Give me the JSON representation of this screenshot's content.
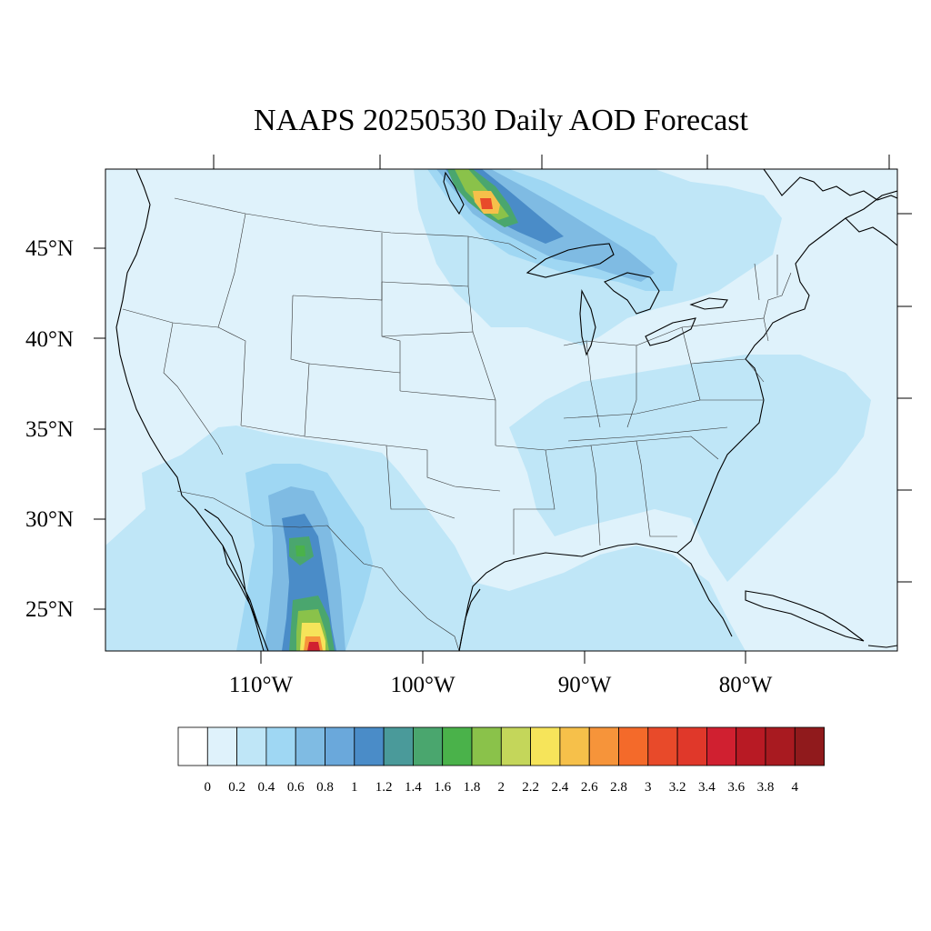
{
  "map": {
    "title": "NAAPS 20250530 Daily AOD Forecast",
    "lon_labels": [
      "110°W",
      "100°W",
      "90°W",
      "80°W"
    ],
    "lat_labels": [
      "45°N",
      "40°N",
      "35°N",
      "30°N",
      "25°N"
    ]
  },
  "legend": {
    "colors": [
      "#ffffff",
      "#dff2fb",
      "#bfe6f7",
      "#9fd7f3",
      "#7fbbe3",
      "#6aa8db",
      "#4a8cc8",
      "#4a9a9a",
      "#4aa66e",
      "#4ab24a",
      "#8ac24a",
      "#c4d65a",
      "#f6e45a",
      "#f6c04a",
      "#f6943a",
      "#f46a2a",
      "#e84a2a",
      "#e0382a",
      "#d02030",
      "#b81a24",
      "#a81a20",
      "#901a1c"
    ],
    "labels": [
      "0",
      "0.2",
      "0.4",
      "0.6",
      "0.8",
      "1",
      "1.2",
      "1.4",
      "1.6",
      "1.8",
      "2",
      "2.2",
      "2.4",
      "2.6",
      "2.8",
      "3",
      "3.2",
      "3.4",
      "3.6",
      "3.8",
      "4"
    ]
  },
  "colors": {
    "background": "#dff2fb",
    "light_band": "#bfe6f7",
    "mid_band": "#9fd7f3"
  }
}
